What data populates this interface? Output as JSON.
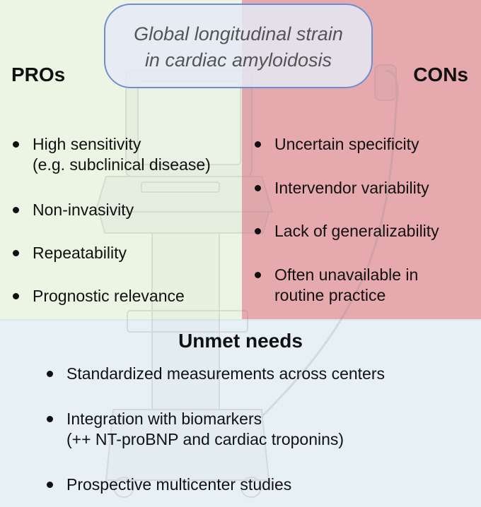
{
  "title": "Global longitudinal strain\nin cardiac amyloidosis",
  "pros": {
    "heading": "PROs",
    "items": [
      "High sensitivity\n(e.g. subclinical disease)",
      "Non-invasivity",
      "Repeatability",
      "Prognostic relevance"
    ]
  },
  "cons": {
    "heading": "CONs",
    "items": [
      "Uncertain specificity",
      "Intervendor variability",
      "Lack of generalizability",
      "Often unavailable in\nroutine practice"
    ]
  },
  "unmet_needs": {
    "heading": "Unmet needs",
    "items": [
      "Standardized measurements across centers",
      "Integration with biomarkers\n(++ NT-proBNP and cardiac troponins)",
      "Prospective multicenter studies"
    ]
  },
  "colors": {
    "pros_bg": "#ecf5e4",
    "cons_bg": "#e6a9ad",
    "needs_bg": "#e7f1f5",
    "title_border": "#6e8fcf"
  }
}
